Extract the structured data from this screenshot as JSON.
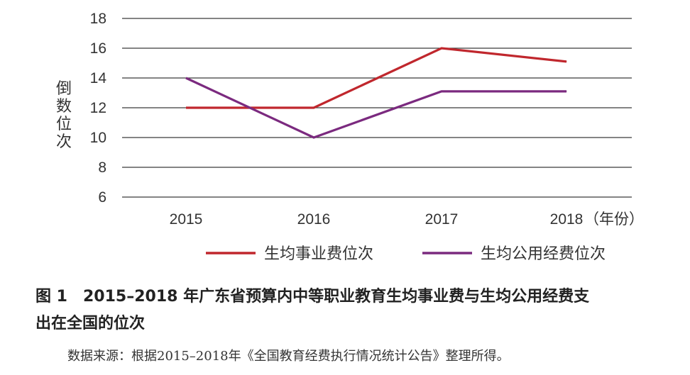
{
  "chart_data": {
    "type": "line",
    "x": [
      "2015",
      "2016",
      "2017",
      "2018"
    ],
    "x_unit_label": "（年份）",
    "ylabel": "倒数位次",
    "ylim": [
      6,
      18
    ],
    "yticks": [
      6,
      8,
      10,
      12,
      14,
      16,
      18
    ],
    "grid": true,
    "legend_position": "bottom",
    "series": [
      {
        "name": "生均事业费位次",
        "color": "#c0272d",
        "values": [
          12,
          12,
          16,
          15.1
        ]
      },
      {
        "name": "生均公用经费位次",
        "color": "#7b2a7f",
        "values": [
          14,
          10,
          13.1,
          13.1
        ]
      }
    ]
  },
  "caption": {
    "line1": "图 1　2015–2018 年广东省预算内中等职业教育生均事业费与生均公用经费支",
    "line2": "出在全国的位次"
  },
  "source": "数据来源：根据2015–2018年《全国教育经费执行情况统计公告》整理所得。"
}
